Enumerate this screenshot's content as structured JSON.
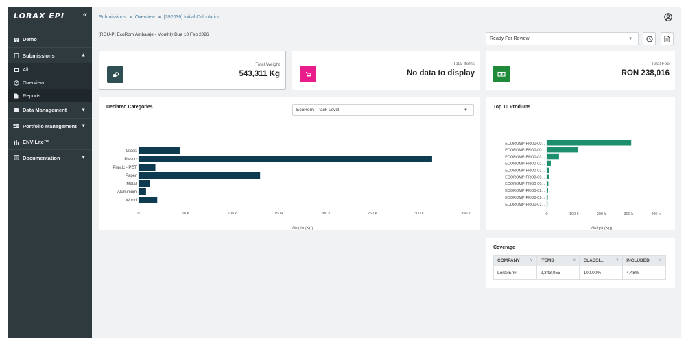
{
  "sidebar": {
    "logo": "LORAX EPI",
    "collapse_icon": "double-chevron-left-icon",
    "items": [
      {
        "label": "Demo",
        "icon": "building-icon"
      },
      {
        "label": "Submissions",
        "icon": "clipboard-icon",
        "expanded": true,
        "children": [
          {
            "label": "All",
            "icon": "box-icon"
          },
          {
            "label": "Overview",
            "icon": "gauge-icon"
          },
          {
            "label": "Reports",
            "icon": "file-icon"
          }
        ]
      },
      {
        "label": "Data Management",
        "icon": "database-icon"
      },
      {
        "label": "Portfolio Management",
        "icon": "portfolio-icon"
      },
      {
        "label": "ENVILite™",
        "icon": "chart-icon"
      },
      {
        "label": "Documentation",
        "icon": "book-icon"
      }
    ]
  },
  "breadcrumb": {
    "items": [
      "Submissions",
      "Overview",
      "[392036] Initial Calculation"
    ]
  },
  "subtitle": "[ROU-P] EcoRom Ambalaje - Monthly Due 10 Feb 2026",
  "status_select": {
    "value": "Ready For Review"
  },
  "kpis": [
    {
      "label": "Total Weight",
      "value": "543,311 Kg",
      "icon": "weight-icon",
      "color": "#2f4f52"
    },
    {
      "label": "Total Items",
      "value": "No data to display",
      "icon": "cart-icon",
      "color": "#e91e8c"
    },
    {
      "label": "Total Fee",
      "value": "RON 238,016",
      "icon": "cash-icon",
      "color": "#1f8a3a"
    }
  ],
  "declared": {
    "title": "Declared Categories",
    "select_value": "EcoRom - Pack Level",
    "chart_data": {
      "type": "bar",
      "orientation": "horizontal",
      "categories": [
        "Glass",
        "Plastic",
        "Plastic - PET",
        "Paper",
        "Metal",
        "Aluminium",
        "Wood"
      ],
      "values": [
        44000,
        314000,
        18000,
        130000,
        12000,
        8000,
        20000
      ],
      "xlabel": "Weight (Kg)",
      "xlim": [
        0,
        350000
      ],
      "xticks": [
        "0",
        "50 k",
        "100 k",
        "150 k",
        "200 k",
        "250 k",
        "300 k",
        "350 k"
      ],
      "color": "#0e3b4f"
    }
  },
  "top10": {
    "title": "Top 10 Products",
    "chart_data": {
      "type": "bar",
      "orientation": "horizontal",
      "categories": [
        "ECOROMP-PRO0-00...",
        "ECOROMP-PRO0-00...",
        "ECOROMP-PRO0-03...",
        "ECOROMP-PRO0-02...",
        "ECOROMP-PRO0-02...",
        "ECOROMP-PRO0-00...",
        "ECOROMP-PRO0-00...",
        "ECOROMP-PRO0-02...",
        "ECOROMP-PRO0-02...",
        "ECOROMP-PRO0-01..."
      ],
      "values": [
        310000,
        115000,
        45000,
        15000,
        10000,
        8000,
        6000,
        5000,
        4000,
        3000
      ],
      "xlabel": "Weight (Kg)",
      "xlim": [
        0,
        400000
      ],
      "xticks": [
        "0",
        "100 k",
        "200 k",
        "300 k",
        "400 k"
      ],
      "color": "#1e8f6e"
    }
  },
  "coverage": {
    "title": "Coverage",
    "columns": [
      "COMPANY",
      "ITEMS",
      "CLASSI...",
      "INCLUDED"
    ],
    "rows": [
      [
        "LoraxEnvi",
        "2,343,055",
        "100.00%",
        "4.48%"
      ]
    ]
  }
}
